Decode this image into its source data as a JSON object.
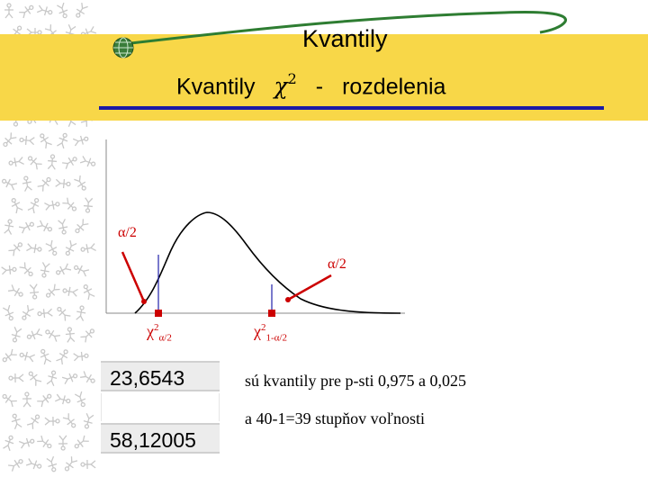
{
  "header": {
    "title": "Kvantily",
    "subtitle_text": "Kvantily",
    "subtitle_chi": "χ",
    "subtitle_power": "2",
    "subtitle_dash": "-",
    "subtitle_tail": "rozdelenia"
  },
  "diagram": {
    "alpha_left": "α/2",
    "alpha_right": "α/2",
    "chi_left_symbol": "χ",
    "chi_left_sup": "2",
    "chi_left_sub": "α/2",
    "chi_right_symbol": "χ",
    "chi_right_sup": "2",
    "chi_right_sub": "1-α/2",
    "curve_color": "#000000",
    "quantile_line_color": "#2222aa",
    "arrow_color": "#cc0000"
  },
  "values": {
    "lower": "23,6543",
    "upper": "58,12005"
  },
  "captions": {
    "line1": "sú kvantily pre p-sti 0,975  a  0,025",
    "line2": "a 40-1=39 stupňov voľnosti"
  },
  "theme": {
    "band_color": "#f8d748",
    "rule_color": "#1a1aa6",
    "swoosh_color": "#2e7d32"
  }
}
